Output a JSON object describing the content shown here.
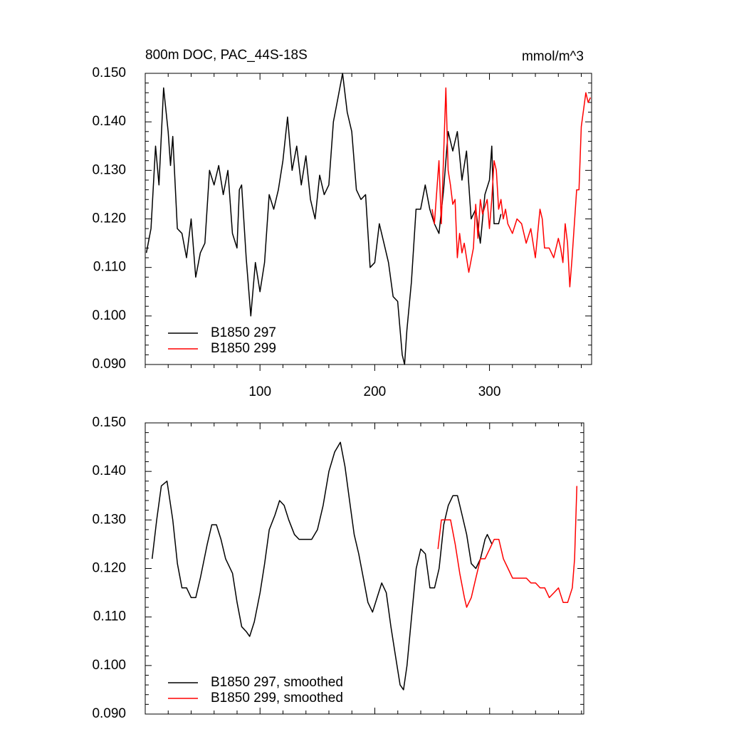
{
  "chart_data": [
    {
      "type": "line",
      "title": "800m DOC, PAC_44S-18S",
      "units": "mmol/m^3",
      "xlim": [
        0,
        389
      ],
      "xticks": [
        100,
        200,
        300
      ],
      "xtick_labels": true,
      "ylim": [
        0.09,
        0.15
      ],
      "yticks": [
        {
          "value": 0.09,
          "label": "0.090"
        },
        {
          "value": 0.1,
          "label": "0.100"
        },
        {
          "value": 0.11,
          "label": "0.110"
        },
        {
          "value": 0.12,
          "label": "0.120"
        },
        {
          "value": 0.13,
          "label": "0.130"
        },
        {
          "value": 0.14,
          "label": "0.140"
        },
        {
          "value": 0.15,
          "label": "0.150"
        }
      ],
      "legend_position": "lower left",
      "series": [
        {
          "name": "B1850 297",
          "color": "#000000",
          "x": [
            1,
            5,
            9,
            12,
            16,
            20,
            22,
            24,
            28,
            32,
            36,
            40,
            44,
            48,
            52,
            56,
            60,
            64,
            68,
            72,
            76,
            80,
            82,
            84,
            88,
            92,
            96,
            100,
            104,
            108,
            112,
            116,
            120,
            124,
            128,
            132,
            136,
            140,
            144,
            148,
            152,
            156,
            160,
            164,
            168,
            172,
            176,
            180,
            184,
            188,
            192,
            196,
            200,
            204,
            208,
            212,
            216,
            220,
            224,
            226,
            228,
            232,
            236,
            240,
            244,
            248,
            252,
            256,
            260,
            264,
            268,
            272,
            276,
            280,
            284,
            288,
            292,
            296,
            300,
            302,
            304,
            308,
            310
          ],
          "values": [
            0.113,
            0.118,
            0.135,
            0.127,
            0.147,
            0.138,
            0.131,
            0.137,
            0.118,
            0.117,
            0.112,
            0.12,
            0.108,
            0.113,
            0.115,
            0.13,
            0.127,
            0.131,
            0.125,
            0.13,
            0.117,
            0.114,
            0.126,
            0.127,
            0.112,
            0.1,
            0.111,
            0.105,
            0.111,
            0.125,
            0.122,
            0.126,
            0.132,
            0.141,
            0.13,
            0.135,
            0.127,
            0.133,
            0.124,
            0.12,
            0.129,
            0.125,
            0.127,
            0.14,
            0.145,
            0.15,
            0.142,
            0.138,
            0.126,
            0.124,
            0.125,
            0.11,
            0.111,
            0.119,
            0.115,
            0.111,
            0.104,
            0.103,
            0.092,
            0.09,
            0.097,
            0.107,
            0.122,
            0.122,
            0.127,
            0.122,
            0.119,
            0.117,
            0.126,
            0.138,
            0.134,
            0.138,
            0.128,
            0.134,
            0.12,
            0.122,
            0.115,
            0.125,
            0.128,
            0.135,
            0.119,
            0.119,
            0.121
          ]
        },
        {
          "name": "B1850 299",
          "color": "#ff0000",
          "x": [
            250,
            252,
            256,
            258,
            262,
            264,
            266,
            268,
            270,
            272,
            274,
            276,
            278,
            282,
            286,
            288,
            290,
            292,
            294,
            298,
            300,
            302,
            304,
            306,
            308,
            310,
            312,
            314,
            316,
            320,
            324,
            328,
            332,
            336,
            340,
            344,
            346,
            348,
            352,
            356,
            360,
            362,
            364,
            366,
            368,
            370,
            372,
            376,
            378,
            380,
            384,
            386,
            388
          ],
          "values": [
            0.122,
            0.119,
            0.132,
            0.119,
            0.147,
            0.13,
            0.127,
            0.123,
            0.124,
            0.112,
            0.117,
            0.113,
            0.115,
            0.109,
            0.114,
            0.123,
            0.116,
            0.124,
            0.121,
            0.124,
            0.118,
            0.124,
            0.132,
            0.13,
            0.122,
            0.124,
            0.12,
            0.122,
            0.119,
            0.117,
            0.12,
            0.119,
            0.115,
            0.118,
            0.112,
            0.122,
            0.12,
            0.114,
            0.114,
            0.112,
            0.116,
            0.114,
            0.111,
            0.119,
            0.115,
            0.106,
            0.112,
            0.126,
            0.126,
            0.139,
            0.146,
            0.144,
            0.145
          ]
        }
      ]
    },
    {
      "type": "line",
      "xlim": [
        0,
        382
      ],
      "xticks": [
        100,
        200,
        300
      ],
      "xtick_labels": false,
      "ylim": [
        0.09,
        0.15
      ],
      "yticks": [
        {
          "value": 0.09,
          "label": "0.090"
        },
        {
          "value": 0.1,
          "label": "0.100"
        },
        {
          "value": 0.11,
          "label": "0.110"
        },
        {
          "value": 0.12,
          "label": "0.120"
        },
        {
          "value": 0.13,
          "label": "0.130"
        },
        {
          "value": 0.14,
          "label": "0.140"
        },
        {
          "value": 0.15,
          "label": "0.150"
        }
      ],
      "legend_position": "lower left",
      "series": [
        {
          "name": "B1850 297, smoothed",
          "color": "#000000",
          "x": [
            6,
            10,
            14,
            19,
            24,
            28,
            32,
            36,
            40,
            44,
            48,
            54,
            58,
            62,
            66,
            70,
            76,
            80,
            84,
            88,
            91,
            95,
            100,
            104,
            108,
            113,
            117,
            121,
            125,
            130,
            134,
            140,
            145,
            150,
            155,
            160,
            165,
            170,
            174,
            178,
            182,
            186,
            190,
            194,
            198,
            202,
            206,
            210,
            214,
            218,
            222,
            225,
            228,
            232,
            236,
            240,
            244,
            248,
            252,
            256,
            260,
            264,
            268,
            272,
            276,
            280,
            284,
            288,
            292,
            296,
            298,
            302
          ],
          "values": [
            0.122,
            0.13,
            0.137,
            0.138,
            0.13,
            0.121,
            0.116,
            0.116,
            0.114,
            0.114,
            0.118,
            0.125,
            0.129,
            0.129,
            0.126,
            0.122,
            0.119,
            0.113,
            0.108,
            0.107,
            0.106,
            0.109,
            0.115,
            0.121,
            0.128,
            0.131,
            0.134,
            0.133,
            0.13,
            0.127,
            0.126,
            0.126,
            0.126,
            0.128,
            0.133,
            0.14,
            0.144,
            0.146,
            0.141,
            0.134,
            0.127,
            0.123,
            0.118,
            0.113,
            0.111,
            0.114,
            0.117,
            0.115,
            0.108,
            0.102,
            0.096,
            0.095,
            0.1,
            0.11,
            0.12,
            0.124,
            0.123,
            0.116,
            0.116,
            0.12,
            0.129,
            0.133,
            0.135,
            0.135,
            0.131,
            0.127,
            0.121,
            0.12,
            0.122,
            0.126,
            0.127,
            0.125
          ]
        },
        {
          "name": "B1850 299, smoothed",
          "color": "#ff0000",
          "x": [
            255,
            258,
            262,
            266,
            270,
            274,
            278,
            280,
            284,
            288,
            292,
            296,
            300,
            304,
            308,
            312,
            316,
            320,
            326,
            332,
            336,
            340,
            344,
            348,
            352,
            356,
            360,
            364,
            368,
            372,
            374,
            376
          ],
          "values": [
            0.124,
            0.13,
            0.13,
            0.13,
            0.125,
            0.119,
            0.114,
            0.112,
            0.114,
            0.118,
            0.122,
            0.122,
            0.124,
            0.126,
            0.126,
            0.122,
            0.12,
            0.118,
            0.118,
            0.118,
            0.117,
            0.117,
            0.116,
            0.116,
            0.114,
            0.115,
            0.116,
            0.113,
            0.113,
            0.116,
            0.122,
            0.137
          ]
        }
      ]
    }
  ]
}
